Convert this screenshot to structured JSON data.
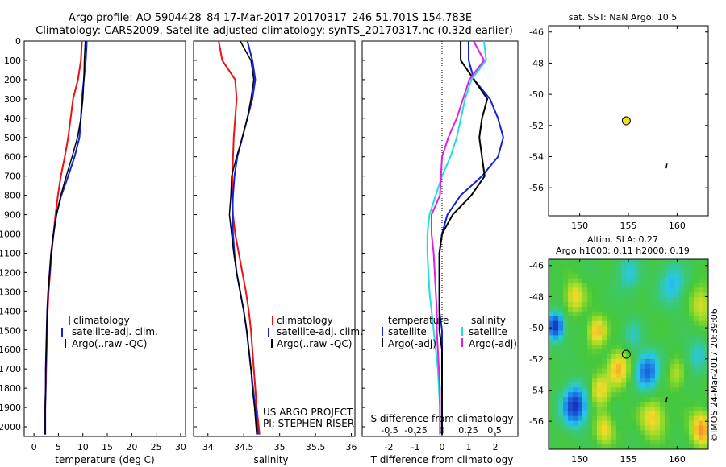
{
  "header": {
    "line1": "Argo profile: AO 5904428_84 17-Mar-2017 20170317_246 51.701S 154.783E",
    "line2": "Climatology: CARS2009. Satellite-adjusted climatology: synTS_20170317.nc (0.32d earlier)"
  },
  "colors": {
    "climatology": "#ee1111",
    "satellite": "#1122dd",
    "argo": "#000000",
    "satellite_temp_diff": "#1122dd",
    "satellite_sal_diff": "#22dddd",
    "argo_sal_diff": "#dd22dd",
    "marker": "#eedd22"
  },
  "depth_ticks": [
    "0",
    "100",
    "200",
    "300",
    "400",
    "500",
    "600",
    "700",
    "800",
    "900",
    "1000",
    "1100",
    "1200",
    "1300",
    "1400",
    "1500",
    "1600",
    "1700",
    "1800",
    "1900",
    "2000"
  ],
  "panels": {
    "temperature": {
      "xlabel": "temperature (deg C)",
      "xticks": [
        "0",
        "5",
        "10",
        "15",
        "20",
        "25",
        "30"
      ],
      "legend": [
        "climatology",
        "satellite-adj. clim.",
        "Argo(..raw -QC)"
      ]
    },
    "salinity": {
      "xlabel": "salinity",
      "xticks": [
        "34",
        "34.5",
        "35",
        "35.5",
        "36"
      ],
      "legend": [
        "climatology",
        "satellite-adj. clim.",
        "Argo(..raw -QC)"
      ],
      "credit1": "US ARGO PROJECT",
      "credit2": "PI: STEPHEN RISER"
    },
    "difference": {
      "xlabel": "T difference from climatology",
      "top_label": "S difference from climatology",
      "xticks_T": [
        "-2",
        "-1",
        "0",
        "1",
        "2"
      ],
      "xticks_S": [
        "-0.5",
        "-0.25",
        "0",
        "0.25",
        "0.5"
      ],
      "legend_head_T": "temperature",
      "legend_head_S": "salinity",
      "legend_T": [
        "satellite",
        "Argo(-adj)"
      ],
      "legend_S": [
        "satellite",
        "Argo(-adj)"
      ]
    },
    "sst_map": {
      "title": "sat. SST: NaN Argo: 10.5",
      "yticks": [
        "-46",
        "-48",
        "-50",
        "-52",
        "-54",
        "-56"
      ],
      "xticks": [
        "150",
        "155",
        "160"
      ]
    },
    "sla_map": {
      "title1": "Altim. SLA: 0.27",
      "title2": "Argo h1000: 0.11 h2000: 0.19",
      "yticks": [
        "-46",
        "-48",
        "-50",
        "-52",
        "-54",
        "-56"
      ],
      "xticks": [
        "150",
        "155",
        "160"
      ],
      "stamp": "©IMOS 24-Mar-2017 20:39:06"
    }
  },
  "chart_data": [
    {
      "type": "line",
      "panel": "temperature",
      "xlabel": "temperature (deg C)",
      "ylabel": "",
      "xlim": [
        -2,
        31
      ],
      "ylim": [
        2050,
        0
      ],
      "series": [
        {
          "name": "climatology",
          "x": [
            9.8,
            9.6,
            9.0,
            8.0,
            7.5,
            7.0,
            6.3,
            5.5,
            4.9,
            4.4,
            4.0,
            3.6,
            3.3,
            3.0,
            2.8,
            2.7,
            2.6,
            2.5,
            2.4,
            2.3,
            2.3
          ],
          "y": [
            0,
            100,
            200,
            300,
            400,
            500,
            600,
            700,
            800,
            900,
            1000,
            1100,
            1200,
            1300,
            1400,
            1500,
            1600,
            1700,
            1800,
            1900,
            2040
          ]
        },
        {
          "name": "satellite-adj. clim.",
          "x": [
            10.8,
            10.6,
            10.2,
            9.8,
            9.6,
            9.3,
            8.3,
            7.0,
            5.6,
            4.6,
            4.0,
            3.5,
            3.2,
            2.9,
            2.7,
            2.6,
            2.5,
            2.4,
            2.4,
            2.3,
            2.3
          ],
          "y": [
            0,
            100,
            200,
            300,
            400,
            500,
            600,
            700,
            800,
            900,
            1000,
            1100,
            1200,
            1300,
            1400,
            1500,
            1600,
            1700,
            1800,
            1900,
            2040
          ]
        },
        {
          "name": "Argo(..raw -QC)",
          "x": [
            10.5,
            10.3,
            10.2,
            10.0,
            9.6,
            8.9,
            7.8,
            6.6,
            5.5,
            4.6,
            4.0,
            3.5,
            3.2,
            2.9,
            2.7,
            2.6,
            2.5,
            2.4,
            2.4,
            2.3,
            2.3
          ],
          "y": [
            0,
            100,
            200,
            300,
            400,
            500,
            600,
            700,
            800,
            900,
            1000,
            1100,
            1200,
            1300,
            1400,
            1500,
            1600,
            1700,
            1800,
            1900,
            2040
          ]
        }
      ]
    },
    {
      "type": "line",
      "panel": "salinity",
      "xlabel": "salinity",
      "ylabel": "",
      "xlim": [
        33.8,
        36.05
      ],
      "ylim": [
        2050,
        0
      ],
      "series": [
        {
          "name": "climatology",
          "x": [
            34.15,
            34.2,
            34.38,
            34.4,
            34.38,
            34.36,
            34.35,
            34.34,
            34.34,
            34.35,
            34.38,
            34.43,
            34.48,
            34.53,
            34.57,
            34.6,
            34.62,
            34.64,
            34.66,
            34.68,
            34.72
          ],
          "y": [
            0,
            100,
            200,
            300,
            400,
            500,
            600,
            700,
            800,
            900,
            1000,
            1100,
            1200,
            1300,
            1400,
            1500,
            1600,
            1700,
            1800,
            1900,
            2040
          ]
        },
        {
          "name": "satellite-adj. clim.",
          "x": [
            34.55,
            34.62,
            34.66,
            34.62,
            34.55,
            34.48,
            34.41,
            34.37,
            34.35,
            34.34,
            34.35,
            34.37,
            34.4,
            34.45,
            34.5,
            34.54,
            34.57,
            34.6,
            34.63,
            34.66,
            34.7
          ],
          "y": [
            0,
            100,
            200,
            300,
            400,
            500,
            600,
            700,
            800,
            900,
            1000,
            1100,
            1200,
            1300,
            1400,
            1500,
            1600,
            1700,
            1800,
            1900,
            2040
          ]
        },
        {
          "name": "Argo(..raw -QC)",
          "x": [
            34.45,
            34.6,
            34.64,
            34.6,
            34.55,
            34.48,
            34.4,
            34.33,
            34.32,
            34.3,
            34.33,
            34.36,
            34.4,
            34.45,
            34.5,
            34.54,
            34.57,
            34.6,
            34.62,
            34.65,
            34.68
          ],
          "y": [
            0,
            100,
            200,
            300,
            400,
            500,
            600,
            700,
            800,
            900,
            1000,
            1100,
            1200,
            1300,
            1400,
            1500,
            1600,
            1700,
            1800,
            1900,
            2040
          ]
        }
      ]
    },
    {
      "type": "line",
      "panel": "difference",
      "xlabel": "T difference from climatology",
      "ylabel": "",
      "xlim": [
        -3,
        3
      ],
      "ylim": [
        2050,
        0
      ],
      "series": [
        {
          "name": "satellite",
          "quantity": "temperature",
          "x": [
            1.0,
            1.0,
            1.2,
            1.8,
            2.1,
            2.3,
            2.1,
            1.5,
            0.7,
            0.2,
            0.0,
            -0.1,
            -0.1,
            -0.1,
            -0.1,
            0.0,
            0.0,
            0.0,
            0.0,
            0.0,
            0.0
          ],
          "y": [
            0,
            100,
            200,
            300,
            400,
            500,
            600,
            700,
            800,
            900,
            1000,
            1100,
            1200,
            1300,
            1400,
            1500,
            1600,
            1700,
            1800,
            1900,
            2040
          ]
        },
        {
          "name": "Argo(-adj)",
          "quantity": "temperature",
          "x": [
            0.7,
            0.7,
            1.2,
            1.7,
            1.5,
            1.4,
            1.5,
            1.6,
            1.1,
            0.4,
            0.0,
            -0.1,
            -0.1,
            -0.1,
            -0.1,
            -0.1,
            0.0,
            0.0,
            0.0,
            0.0,
            0.0
          ],
          "y": [
            0,
            100,
            200,
            300,
            400,
            500,
            600,
            700,
            800,
            900,
            1000,
            1100,
            1200,
            1300,
            1400,
            1500,
            1600,
            1700,
            1800,
            1900,
            2040
          ]
        },
        {
          "name": "satellite",
          "quantity": "salinity",
          "x": [
            0.4,
            0.42,
            0.28,
            0.22,
            0.18,
            0.14,
            0.08,
            0.0,
            -0.06,
            -0.12,
            -0.14,
            -0.14,
            -0.13,
            -0.12,
            -0.1,
            -0.08,
            -0.06,
            -0.04,
            -0.03,
            -0.02,
            -0.02
          ],
          "y": [
            0,
            100,
            200,
            300,
            400,
            500,
            600,
            700,
            800,
            900,
            1000,
            1100,
            1200,
            1300,
            1400,
            1500,
            1600,
            1700,
            1800,
            1900,
            2040
          ]
        },
        {
          "name": "Argo(-adj)",
          "quantity": "salinity",
          "x": [
            0.3,
            0.4,
            0.26,
            0.2,
            0.14,
            0.06,
            0.0,
            -0.01,
            -0.02,
            -0.1,
            -0.1,
            -0.08,
            -0.07,
            -0.06,
            -0.05,
            -0.05,
            -0.04,
            -0.03,
            -0.02,
            -0.02,
            -0.02
          ],
          "y": [
            0,
            100,
            200,
            300,
            400,
            500,
            600,
            700,
            800,
            900,
            1000,
            1100,
            1200,
            1300,
            1400,
            1500,
            1600,
            1700,
            1800,
            1900,
            2040
          ]
        }
      ]
    },
    {
      "type": "scatter",
      "panel": "sst_map",
      "title": "sat. SST: NaN Argo: 10.5",
      "xlim": [
        146.8,
        163.2
      ],
      "ylim": [
        -57.8,
        -45.6
      ],
      "series": [
        {
          "name": "",
          "x": [
            154.783
          ],
          "y": [
            -51.701
          ]
        }
      ]
    },
    {
      "type": "heatmap",
      "panel": "sla_map",
      "title": "Altim. SLA: 0.27",
      "xlim": [
        146.8,
        163.2
      ],
      "ylim": [
        -57.8,
        -45.6
      ],
      "series": [
        {
          "name": "",
          "x": [
            154.783
          ],
          "y": [
            -51.701
          ]
        }
      ]
    }
  ]
}
